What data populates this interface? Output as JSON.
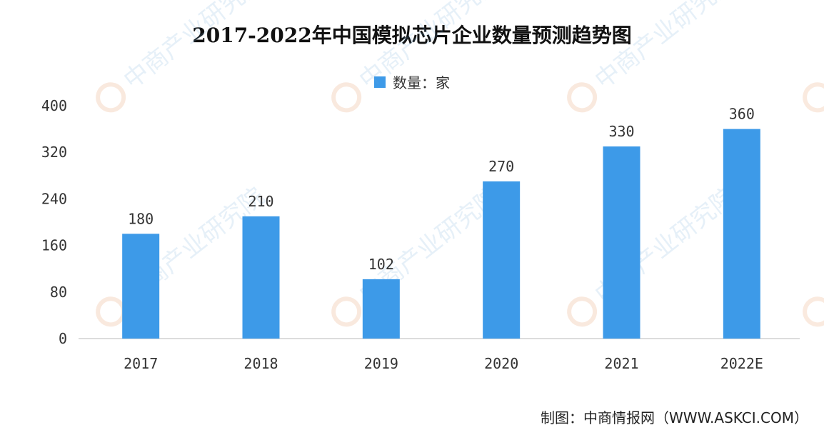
{
  "chart_data": {
    "type": "bar",
    "title": "2017-2022年中国模拟芯片企业数量预测趋势图",
    "categories": [
      "2017",
      "2018",
      "2019",
      "2020",
      "2021",
      "2022E"
    ],
    "series": [
      {
        "name": "数量：家",
        "values": [
          180,
          210,
          102,
          270,
          330,
          360
        ],
        "color": "#3d9ae8"
      }
    ],
    "y_ticks": [
      "0",
      "80",
      "160",
      "240",
      "320",
      "400"
    ],
    "ylim": [
      0,
      400
    ],
    "grid": false,
    "legend_position": "top-center",
    "data_labels": true
  },
  "source_note": "制图：中商情报网（WWW.ASKCI.COM）",
  "watermark_text": "中商产业研究院"
}
